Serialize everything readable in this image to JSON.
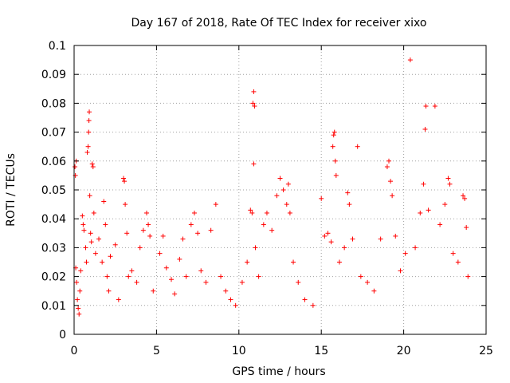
{
  "chart_data": {
    "type": "scatter",
    "title": "Day 167 of 2018, Rate Of TEC Index for receiver xixo",
    "xlabel": "GPS time / hours",
    "ylabel": "ROTI / TECUs",
    "xlim": [
      0,
      25
    ],
    "ylim": [
      0,
      0.1
    ],
    "xticks": [
      0,
      5,
      10,
      15,
      20,
      25
    ],
    "yticks": [
      0,
      0.01,
      0.02,
      0.03,
      0.04,
      0.05,
      0.06,
      0.07,
      0.08,
      0.09,
      0.1
    ],
    "xtick_labels": [
      "0",
      "5",
      "10",
      "15",
      "20",
      "25"
    ],
    "ytick_labels": [
      "0",
      "0.01",
      "0.02",
      "0.03",
      "0.04",
      "0.05",
      "0.06",
      "0.07",
      "0.08",
      "0.09",
      "0.1"
    ],
    "grid": true,
    "marker": "+",
    "color": "#ff0000",
    "series": [
      {
        "points": [
          [
            0.05,
            0.058
          ],
          [
            0.08,
            0.055
          ],
          [
            0.12,
            0.06
          ],
          [
            0.1,
            0.023
          ],
          [
            0.15,
            0.018
          ],
          [
            0.2,
            0.012
          ],
          [
            0.25,
            0.009
          ],
          [
            0.3,
            0.007
          ],
          [
            0.35,
            0.015
          ],
          [
            0.4,
            0.022
          ],
          [
            0.5,
            0.041
          ],
          [
            0.55,
            0.038
          ],
          [
            0.6,
            0.036
          ],
          [
            0.7,
            0.03
          ],
          [
            0.75,
            0.025
          ],
          [
            0.8,
            0.063
          ],
          [
            0.85,
            0.065
          ],
          [
            0.88,
            0.07
          ],
          [
            0.9,
            0.074
          ],
          [
            0.92,
            0.077
          ],
          [
            0.95,
            0.048
          ],
          [
            1.0,
            0.035
          ],
          [
            1.05,
            0.032
          ],
          [
            1.1,
            0.059
          ],
          [
            1.15,
            0.058
          ],
          [
            1.2,
            0.042
          ],
          [
            1.3,
            0.028
          ],
          [
            1.5,
            0.033
          ],
          [
            1.7,
            0.025
          ],
          [
            1.8,
            0.046
          ],
          [
            1.9,
            0.038
          ],
          [
            2.0,
            0.02
          ],
          [
            2.1,
            0.015
          ],
          [
            2.2,
            0.027
          ],
          [
            2.5,
            0.031
          ],
          [
            2.7,
            0.012
          ],
          [
            3.0,
            0.054
          ],
          [
            3.05,
            0.053
          ],
          [
            3.1,
            0.045
          ],
          [
            3.2,
            0.035
          ],
          [
            3.3,
            0.02
          ],
          [
            3.5,
            0.022
          ],
          [
            3.8,
            0.018
          ],
          [
            4.0,
            0.03
          ],
          [
            4.2,
            0.036
          ],
          [
            4.4,
            0.042
          ],
          [
            4.5,
            0.038
          ],
          [
            4.6,
            0.034
          ],
          [
            4.8,
            0.015
          ],
          [
            5.2,
            0.028
          ],
          [
            5.4,
            0.034
          ],
          [
            5.6,
            0.023
          ],
          [
            5.9,
            0.019
          ],
          [
            6.1,
            0.014
          ],
          [
            6.4,
            0.026
          ],
          [
            6.6,
            0.033
          ],
          [
            6.8,
            0.02
          ],
          [
            7.1,
            0.038
          ],
          [
            7.3,
            0.042
          ],
          [
            7.5,
            0.035
          ],
          [
            7.7,
            0.022
          ],
          [
            8.0,
            0.018
          ],
          [
            8.3,
            0.036
          ],
          [
            8.6,
            0.045
          ],
          [
            8.9,
            0.02
          ],
          [
            9.2,
            0.015
          ],
          [
            9.5,
            0.012
          ],
          [
            9.8,
            0.01
          ],
          [
            10.2,
            0.018
          ],
          [
            10.5,
            0.025
          ],
          [
            10.7,
            0.043
          ],
          [
            10.8,
            0.042
          ],
          [
            10.85,
            0.08
          ],
          [
            10.9,
            0.084
          ],
          [
            10.95,
            0.079
          ],
          [
            10.9,
            0.059
          ],
          [
            11.0,
            0.03
          ],
          [
            11.2,
            0.02
          ],
          [
            11.5,
            0.038
          ],
          [
            11.7,
            0.042
          ],
          [
            12.0,
            0.036
          ],
          [
            12.3,
            0.048
          ],
          [
            12.5,
            0.054
          ],
          [
            12.7,
            0.05
          ],
          [
            12.9,
            0.045
          ],
          [
            13.0,
            0.052
          ],
          [
            13.1,
            0.042
          ],
          [
            13.3,
            0.025
          ],
          [
            13.6,
            0.018
          ],
          [
            14.0,
            0.012
          ],
          [
            14.5,
            0.01
          ],
          [
            15.0,
            0.047
          ],
          [
            15.2,
            0.034
          ],
          [
            15.4,
            0.035
          ],
          [
            15.6,
            0.032
          ],
          [
            15.7,
            0.065
          ],
          [
            15.75,
            0.069
          ],
          [
            15.8,
            0.07
          ],
          [
            15.85,
            0.06
          ],
          [
            15.9,
            0.055
          ],
          [
            16.1,
            0.025
          ],
          [
            16.4,
            0.03
          ],
          [
            16.6,
            0.049
          ],
          [
            16.7,
            0.045
          ],
          [
            16.9,
            0.033
          ],
          [
            17.2,
            0.065
          ],
          [
            17.4,
            0.02
          ],
          [
            17.8,
            0.018
          ],
          [
            18.2,
            0.015
          ],
          [
            18.6,
            0.033
          ],
          [
            19.0,
            0.058
          ],
          [
            19.1,
            0.06
          ],
          [
            19.2,
            0.053
          ],
          [
            19.3,
            0.048
          ],
          [
            19.5,
            0.034
          ],
          [
            19.8,
            0.022
          ],
          [
            20.1,
            0.028
          ],
          [
            20.4,
            0.095
          ],
          [
            20.7,
            0.03
          ],
          [
            21.0,
            0.042
          ],
          [
            21.2,
            0.052
          ],
          [
            21.3,
            0.071
          ],
          [
            21.35,
            0.079
          ],
          [
            21.5,
            0.043
          ],
          [
            21.9,
            0.079
          ],
          [
            22.2,
            0.038
          ],
          [
            22.5,
            0.045
          ],
          [
            22.7,
            0.054
          ],
          [
            22.8,
            0.052
          ],
          [
            23.0,
            0.028
          ],
          [
            23.3,
            0.025
          ],
          [
            23.6,
            0.048
          ],
          [
            23.7,
            0.047
          ],
          [
            23.8,
            0.037
          ],
          [
            23.9,
            0.02
          ]
        ]
      }
    ]
  }
}
